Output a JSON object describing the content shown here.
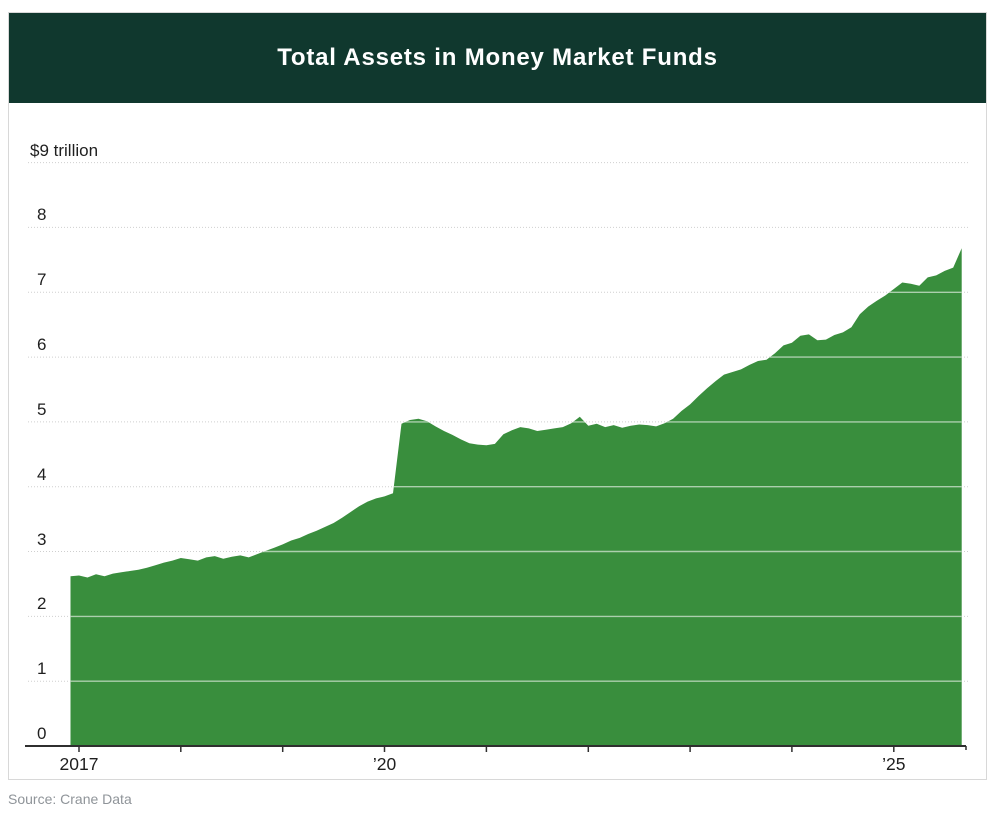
{
  "header": {
    "title": "Total Assets in Money Market Funds",
    "bg_color": "#10382e",
    "text_color": "#ffffff"
  },
  "source": {
    "label": "Source: Crane Data"
  },
  "chart_data": {
    "type": "area",
    "title": "Total Assets in Money Market Funds",
    "unit": "trillions of US dollars",
    "fill_color": "#398e3d",
    "grid": true,
    "legend": false,
    "ylim": [
      0,
      9
    ],
    "xlim_years": [
      2016.92,
      2025.75
    ],
    "y_ticks": [
      {
        "value": 9,
        "label": "$9 trillion"
      },
      {
        "value": 8,
        "label": "8"
      },
      {
        "value": 7,
        "label": "7"
      },
      {
        "value": 6,
        "label": "6"
      },
      {
        "value": 5,
        "label": "5"
      },
      {
        "value": 4,
        "label": "4"
      },
      {
        "value": 3,
        "label": "3"
      },
      {
        "value": 2,
        "label": "2"
      },
      {
        "value": 1,
        "label": "1"
      },
      {
        "value": 0,
        "label": "0"
      }
    ],
    "x_ticks_years": [
      2017,
      2018,
      2019,
      2020,
      2021,
      2022,
      2023,
      2024,
      2025
    ],
    "x_tick_labels": [
      {
        "year": 2017,
        "label": "2017"
      },
      {
        "year": 2020,
        "label": "’20"
      },
      {
        "year": 2025,
        "label": "’25"
      }
    ],
    "series": [
      {
        "name": "Total assets in money market funds",
        "start": "2016-12",
        "interval": "monthly",
        "values": [
          2.62,
          2.63,
          2.6,
          2.65,
          2.62,
          2.66,
          2.68,
          2.7,
          2.72,
          2.75,
          2.79,
          2.83,
          2.86,
          2.9,
          2.88,
          2.86,
          2.91,
          2.93,
          2.89,
          2.92,
          2.94,
          2.91,
          2.96,
          3.01,
          3.06,
          3.11,
          3.17,
          3.21,
          3.27,
          3.32,
          3.38,
          3.44,
          3.52,
          3.61,
          3.7,
          3.77,
          3.82,
          3.85,
          3.9,
          4.97,
          5.03,
          5.05,
          5.01,
          4.93,
          4.86,
          4.8,
          4.73,
          4.67,
          4.65,
          4.64,
          4.66,
          4.81,
          4.87,
          4.92,
          4.9,
          4.86,
          4.88,
          4.9,
          4.92,
          4.98,
          5.08,
          4.94,
          4.97,
          4.92,
          4.95,
          4.91,
          4.94,
          4.96,
          4.95,
          4.93,
          4.98,
          5.05,
          5.17,
          5.27,
          5.4,
          5.52,
          5.63,
          5.73,
          5.77,
          5.81,
          5.88,
          5.94,
          5.96,
          6.06,
          6.18,
          6.22,
          6.33,
          6.35,
          6.26,
          6.27,
          6.34,
          6.38,
          6.46,
          6.66,
          6.78,
          6.87,
          6.95,
          7.05,
          7.15,
          7.13,
          7.1,
          7.23,
          7.26,
          7.33,
          7.38,
          7.68
        ]
      }
    ]
  }
}
